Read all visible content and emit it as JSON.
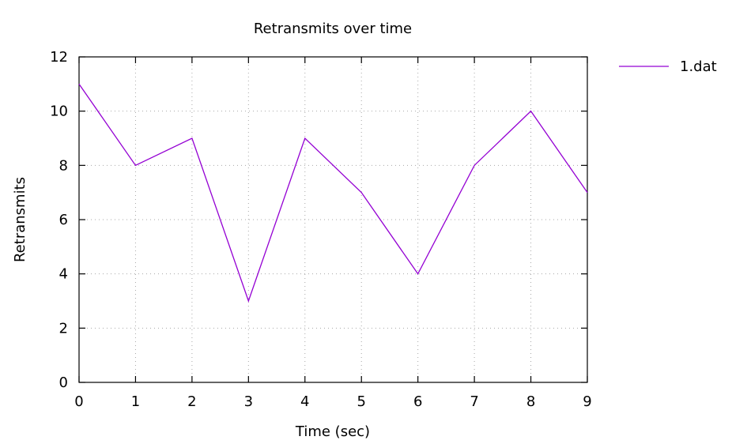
{
  "chart_data": {
    "type": "line",
    "title": "Retransmits over time",
    "xlabel": "Time (sec)",
    "ylabel": "Retransmits",
    "xlim": [
      0,
      9
    ],
    "ylim": [
      0,
      12
    ],
    "x_ticks": [
      0,
      1,
      2,
      3,
      4,
      5,
      6,
      7,
      8,
      9
    ],
    "y_ticks": [
      0,
      2,
      4,
      6,
      8,
      10,
      12
    ],
    "grid": true,
    "legend_position": "outside-top-right",
    "series": [
      {
        "name": "1.dat",
        "color": "#9400d3",
        "x": [
          0,
          1,
          2,
          3,
          4,
          5,
          6,
          7,
          8,
          9
        ],
        "values": [
          11,
          8,
          9,
          3,
          9,
          7,
          4,
          8,
          10,
          7
        ]
      }
    ]
  }
}
